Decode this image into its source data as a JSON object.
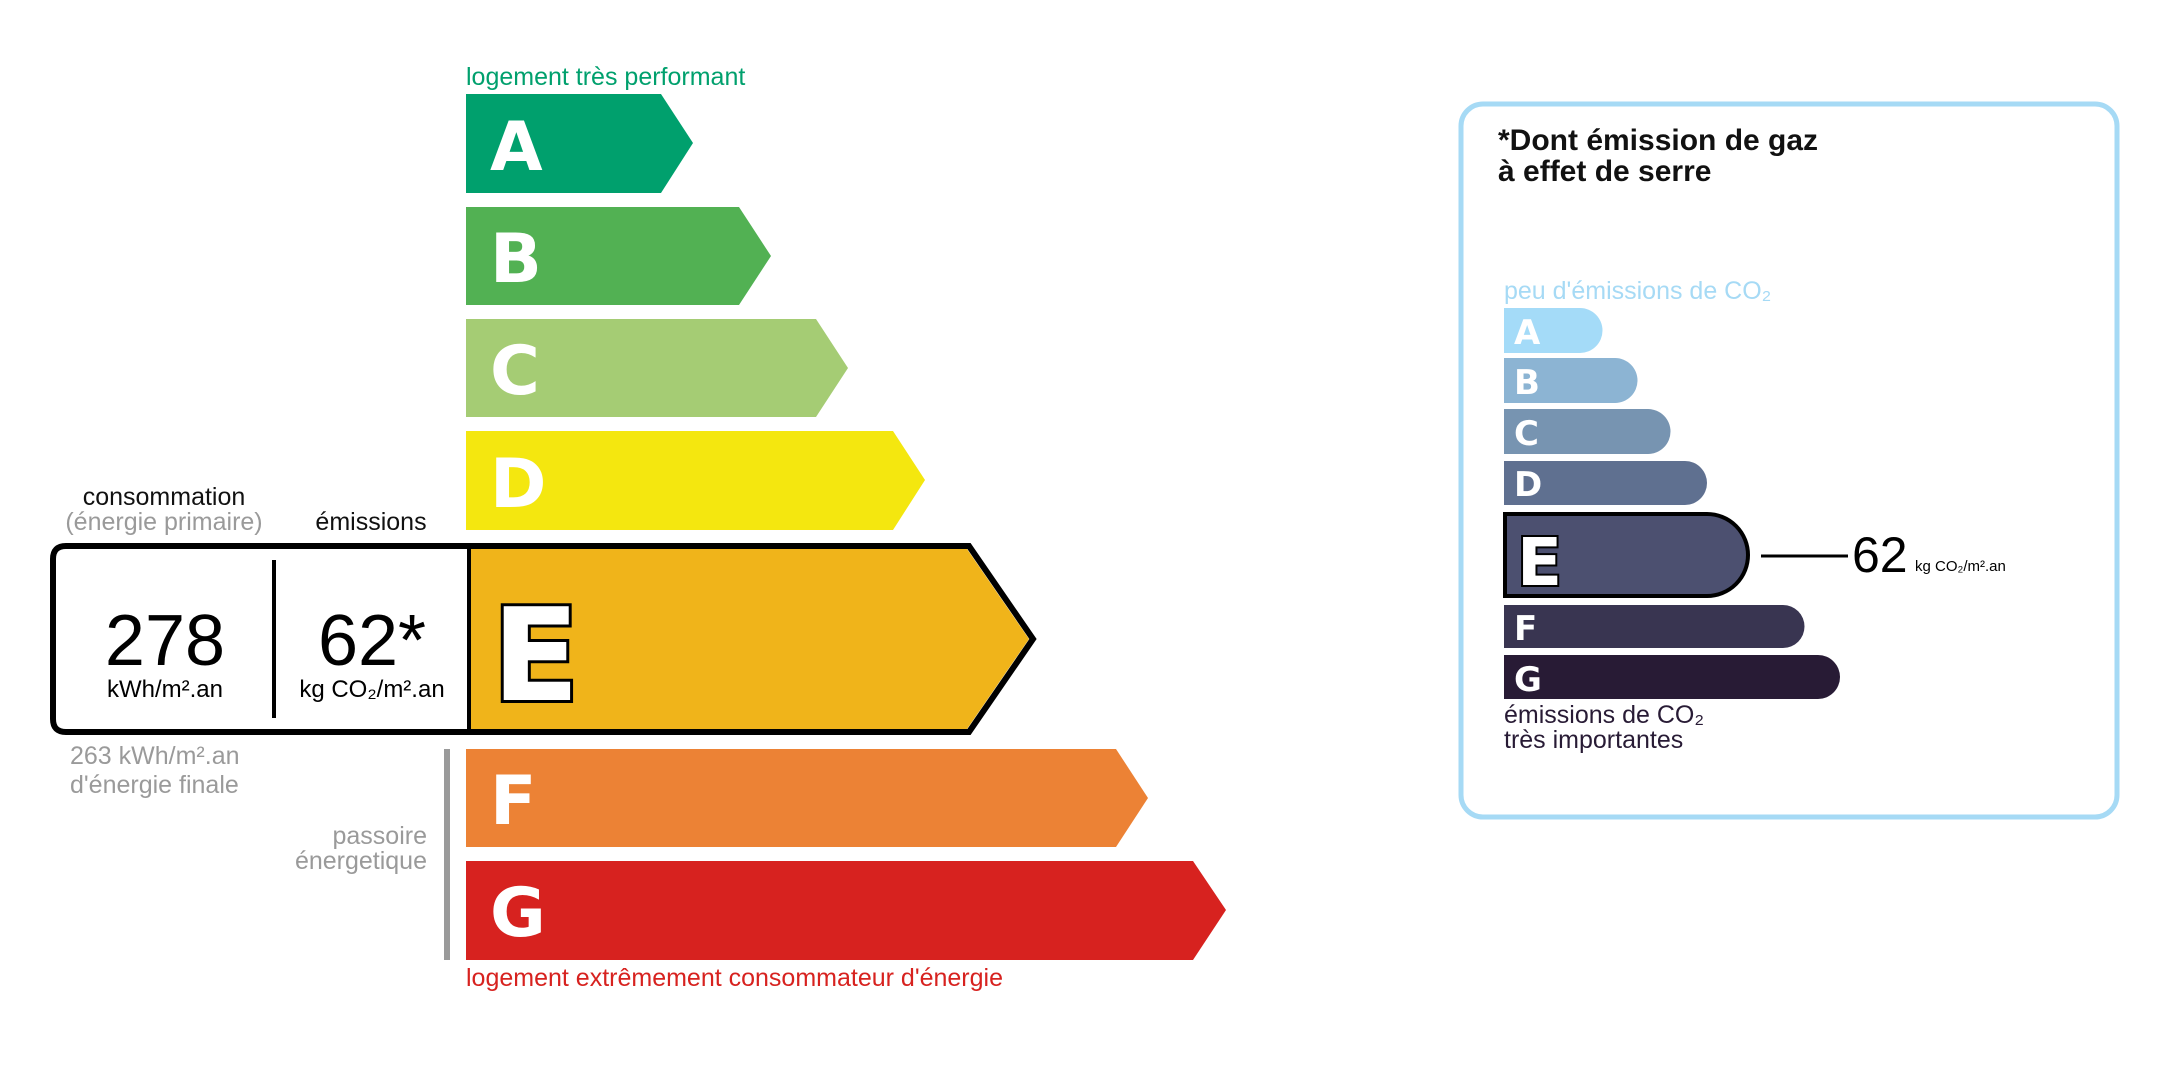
{
  "dpe": {
    "top_label": "logement très performant",
    "bottom_label": "logement extrêmement consommateur d'énergie",
    "classes": [
      {
        "letter": "A",
        "color": "#00a06d"
      },
      {
        "letter": "B",
        "color": "#52b153"
      },
      {
        "letter": "C",
        "color": "#a5cc74"
      },
      {
        "letter": "D",
        "color": "#f4e70f"
      },
      {
        "letter": "E",
        "color": "#f0b41a"
      },
      {
        "letter": "F",
        "color": "#ec8235"
      },
      {
        "letter": "G",
        "color": "#d7221f"
      }
    ],
    "current_class": "E",
    "consumption_label": "consommation",
    "consumption_sublabel": "(énergie primaire)",
    "emissions_label": "émissions",
    "consumption_value": "278",
    "consumption_unit": "kWh/m².an",
    "emissions_value": "62*",
    "emissions_unit": "kg CO₂/m².an",
    "final_energy_value": "263 kWh/m².an",
    "final_energy_label": "d'énergie finale",
    "passoire_line1": "passoire",
    "passoire_line2": "énergetique"
  },
  "ges": {
    "title_line1": "*Dont émission de gaz",
    "title_line2": "à effet de serre",
    "top_label": "peu d'émissions de CO₂",
    "bottom_label_line1": "émissions de CO₂",
    "bottom_label_line2": "très importantes",
    "classes": [
      {
        "letter": "A",
        "color": "#a4dbf8"
      },
      {
        "letter": "B",
        "color": "#8cb4d3"
      },
      {
        "letter": "C",
        "color": "#7794b1"
      },
      {
        "letter": "D",
        "color": "#5f7090"
      },
      {
        "letter": "E",
        "color": "#4c5070"
      },
      {
        "letter": "F",
        "color": "#393551"
      },
      {
        "letter": "G",
        "color": "#281b35"
      }
    ],
    "current_class": "E",
    "value": "62",
    "unit": "kg CO₂/m².an",
    "border_color": "#a6daf5"
  }
}
